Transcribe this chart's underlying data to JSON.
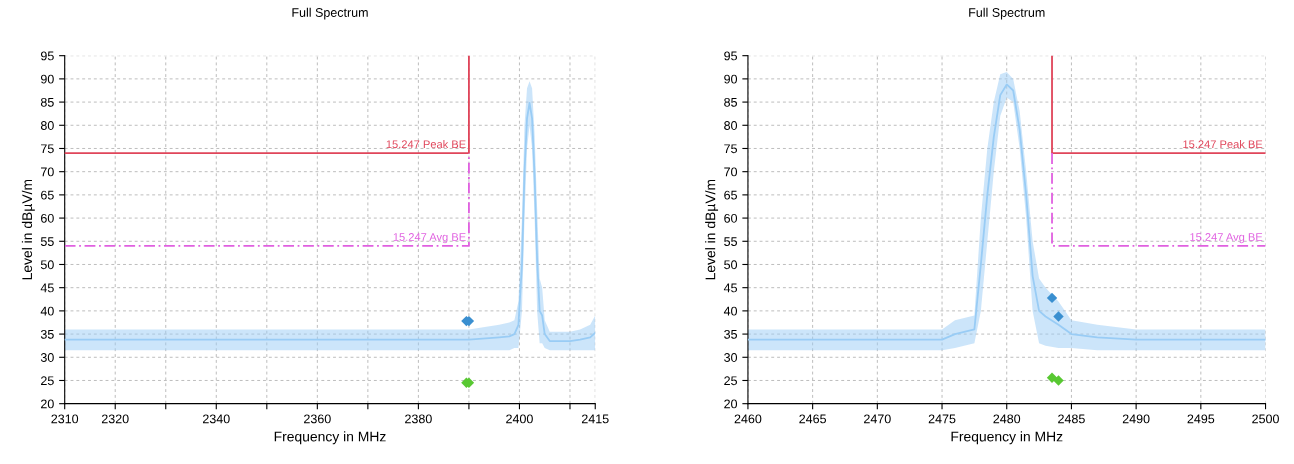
{
  "chart_data": [
    {
      "type": "line",
      "title": "Full Spectrum",
      "xlabel": "Frequency in MHz",
      "ylabel": "Level in dBµV/m",
      "xlim": [
        2310,
        2415
      ],
      "xticks": [
        2310,
        2320,
        {
          "value": 2330,
          "label": null
        },
        2340,
        {
          "value": 2350,
          "label": null
        },
        2360,
        {
          "value": 2370,
          "label": null
        },
        2380,
        {
          "value": 2390,
          "label": null
        },
        2400,
        {
          "value": 2410,
          "label": null
        },
        2415
      ],
      "ylim": [
        20,
        95
      ],
      "yticks": [
        20,
        25,
        30,
        35,
        40,
        45,
        50,
        55,
        60,
        65,
        70,
        75,
        80,
        85,
        90,
        95
      ],
      "grid": true,
      "legend": false,
      "series": [
        {
          "color": "#99ccf5",
          "x": [
            2310,
            2320,
            2330,
            2340,
            2350,
            2360,
            2370,
            2380,
            2390,
            2396,
            2398,
            2399,
            2399.8,
            2400.5,
            2401,
            2401.5,
            2402,
            2402.5,
            2403,
            2403.5,
            2404,
            2404.5,
            2405,
            2406,
            2408,
            2410,
            2412,
            2414,
            2415
          ],
          "values": [
            33.8,
            33.8,
            33.8,
            33.8,
            33.8,
            33.8,
            33.8,
            33.8,
            33.8,
            34.3,
            34.5,
            35,
            37,
            50,
            70,
            81.5,
            84.8,
            81.5,
            69,
            51,
            40,
            39,
            35,
            33.5,
            33.5,
            33.5,
            33.8,
            34.3,
            35.3
          ],
          "lower": [
            31.5,
            31.5,
            31.5,
            31.5,
            31.5,
            31.5,
            31.5,
            31.5,
            31.5,
            31.5,
            31.5,
            32,
            32,
            40,
            60,
            75,
            80,
            75,
            60,
            40,
            33,
            33,
            32,
            31.5,
            31.5,
            31.5,
            31.5,
            31.5,
            31.5
          ],
          "upper": [
            36,
            36,
            36,
            36,
            36,
            36,
            36,
            36,
            36,
            37,
            37.5,
            38,
            42,
            60,
            80,
            88,
            89.5,
            88,
            78,
            62,
            47,
            45,
            38,
            35.5,
            35.5,
            35.5,
            36,
            37,
            39
          ]
        },
        {
          "type": "line",
          "name": "15.247 Peak BE",
          "color": "#e0455a",
          "line_style": "solid",
          "x": [
            2310,
            2390,
            2390
          ],
          "values": [
            74,
            74,
            95
          ]
        },
        {
          "type": "line",
          "name": "15.247 Avg BE",
          "color": "#e060e0",
          "line_style": "dashed",
          "x": [
            2310,
            2390,
            2390
          ],
          "values": [
            54,
            54,
            74
          ]
        },
        {
          "type": "scatter",
          "color": "#3a8fd0",
          "marker": "diamond",
          "x": [
            2389.5,
            2390
          ],
          "values": [
            37.8,
            37.8
          ]
        },
        {
          "type": "scatter",
          "color": "#58c832",
          "marker": "diamond",
          "x": [
            2389.5,
            2390
          ],
          "values": [
            24.5,
            24.5
          ]
        }
      ]
    },
    {
      "type": "line",
      "title": "Full Spectrum",
      "xlabel": "Frequency in MHz",
      "ylabel": "Level in dBµV/m",
      "xlim": [
        2460,
        2500
      ],
      "xticks": [
        2460,
        2465,
        2470,
        2475,
        2480,
        2485,
        2490,
        2495,
        2500
      ],
      "ylim": [
        20,
        95
      ],
      "yticks": [
        20,
        25,
        30,
        35,
        40,
        45,
        50,
        55,
        60,
        65,
        70,
        75,
        80,
        85,
        90,
        95
      ],
      "grid": true,
      "legend": false,
      "series": [
        {
          "color": "#99ccf5",
          "x": [
            2460,
            2465,
            2470,
            2475,
            2476,
            2477.5,
            2478,
            2478.5,
            2479,
            2479.5,
            2480,
            2480.5,
            2481,
            2481.5,
            2482,
            2482.5,
            2483,
            2484,
            2485,
            2487,
            2490,
            2495,
            2500
          ],
          "values": [
            33.8,
            33.8,
            33.8,
            33.8,
            35,
            36,
            50,
            65,
            77.5,
            86.5,
            88.8,
            87.5,
            79,
            65,
            47.5,
            40,
            38.8,
            37,
            35,
            34.3,
            33.8,
            33.8,
            33.8
          ],
          "lower": [
            31.5,
            31.5,
            31.5,
            31.5,
            32,
            33,
            40,
            55,
            70,
            82,
            86,
            85,
            75,
            60,
            40,
            33,
            32.5,
            32,
            32,
            31.5,
            31.5,
            31.5,
            31.5
          ],
          "upper": [
            36,
            36,
            36,
            36,
            38,
            39,
            60,
            75,
            85,
            91,
            91.5,
            90,
            83,
            70,
            55,
            47,
            45,
            42,
            38,
            37,
            36,
            36,
            36
          ]
        },
        {
          "type": "line",
          "name": "15.247 Peak BE",
          "color": "#e0455a",
          "line_style": "solid",
          "x": [
            2483.5,
            2483.5,
            2500
          ],
          "values": [
            95,
            74,
            74
          ]
        },
        {
          "type": "line",
          "name": "15.247 Avg BE",
          "color": "#e060e0",
          "line_style": "dashed",
          "x": [
            2483.5,
            2483.5,
            2500
          ],
          "values": [
            74,
            54,
            54
          ]
        },
        {
          "type": "scatter",
          "color": "#3a8fd0",
          "marker": "diamond",
          "x": [
            2483.5,
            2484
          ],
          "values": [
            42.8,
            38.8
          ]
        },
        {
          "type": "scatter",
          "color": "#58c832",
          "marker": "diamond",
          "x": [
            2483.5,
            2484
          ],
          "values": [
            25.6,
            25.0
          ]
        }
      ]
    }
  ]
}
